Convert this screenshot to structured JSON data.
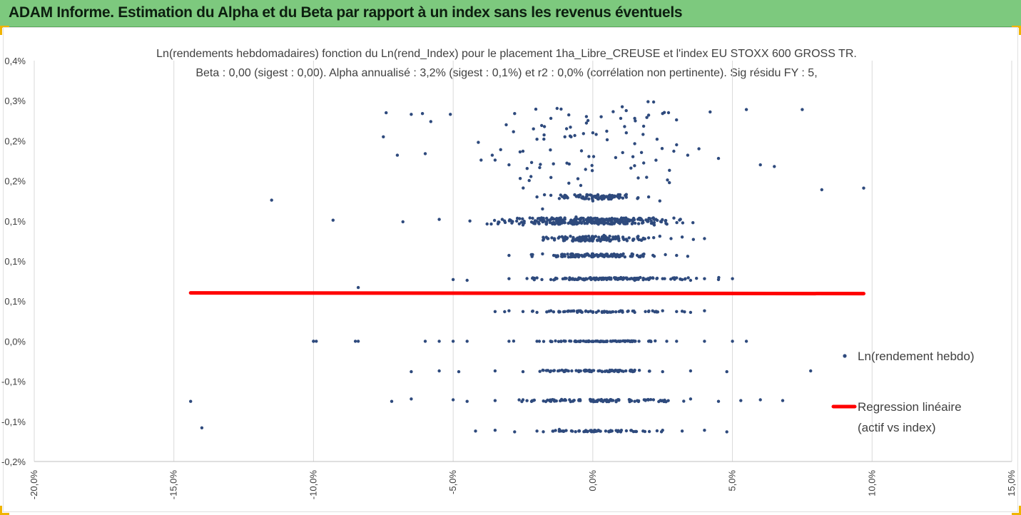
{
  "banner": {
    "title": "ADAM Informe. Estimation du Alpha et du Beta par rapport à un index sans les revenus éventuels"
  },
  "chart_data": {
    "type": "scatter",
    "title": "Ln(rendements hebdomadaires) fonction du Ln(rend_Index) pour le placement 1ha_Libre_CREUSE et l'index EU STOXX 600 GROSS TR.",
    "subtitle": "Beta : 0,00 (sigest : 0,00). Alpha annualisé : 3,2% (sigest : 0,1%) et r2 : 0,0% (corrélation non pertinente). Sig résidu FY : 5,",
    "xlabel": "",
    "ylabel": "",
    "xlim": [
      -0.2,
      0.15
    ],
    "ylim": [
      -0.0015,
      0.003
    ],
    "x_ticks": [
      -0.2,
      -0.15,
      -0.1,
      -0.05,
      0.0,
      0.05,
      0.1,
      0.15
    ],
    "x_tick_labels": [
      "-20,0%",
      "-15,0%",
      "-10,0%",
      "-5,0%",
      "0,0%",
      "5,0%",
      "10,0%",
      "15,0%"
    ],
    "y_ticks": [
      -0.0015,
      -0.001,
      -0.0005,
      0.0,
      0.0005,
      0.001,
      0.0015,
      0.002,
      0.0025,
      0.003
    ],
    "y_tick_labels": [
      "-0,2%",
      "-0,1%",
      "-0,1%",
      "0,0%",
      "0,1%",
      "0,1%",
      "0,1%",
      "0,2%",
      "0,2%",
      "0,3%"
    ],
    "y_tick_top_label": "0,4%",
    "grid": "vertical",
    "legend_position": "right",
    "series": [
      {
        "name": "Ln(rendement hebdo)",
        "kind": "points",
        "color": "#2e4a7d",
        "x": [
          -0.144,
          -0.14,
          -0.115,
          -0.1,
          -0.099,
          -0.093,
          -0.084,
          -0.084,
          -0.075,
          -0.074,
          -0.07,
          -0.068,
          -0.061,
          -0.055,
          -0.051,
          -0.044,
          -0.041,
          -0.035,
          -0.033,
          -0.031,
          -0.028,
          -0.015,
          -0.008,
          0.003,
          0.01,
          0.015,
          0.02,
          0.025,
          0.029,
          0.034,
          0.042,
          0.055,
          0.075,
          0.082,
          0.097,
          -0.058,
          -0.06,
          -0.065,
          -0.04,
          -0.036,
          -0.03,
          -0.025,
          -0.02,
          -0.01,
          0.0,
          0.005,
          0.012,
          0.018,
          0.023,
          0.03,
          0.038,
          0.045,
          0.06,
          0.065,
          -0.02,
          -0.018,
          -0.015,
          -0.012,
          -0.01,
          -0.005,
          0.0,
          0.004,
          0.008,
          0.012,
          0.016,
          0.02,
          0.024,
          -0.025,
          -0.018,
          -0.014,
          -0.01,
          -0.006,
          -0.002,
          0.002,
          0.006,
          0.01,
          0.014,
          0.018,
          0.022,
          0.026,
          -0.016,
          -0.012,
          -0.008,
          -0.004,
          0.0,
          0.004,
          0.008,
          0.012,
          0.016,
          0.02,
          0.024,
          0.028,
          0.032,
          0.036,
          0.04,
          -0.03,
          -0.022,
          -0.018,
          -0.014,
          -0.01,
          -0.006,
          -0.002,
          0.002,
          0.006,
          0.01,
          0.014,
          0.018,
          0.022,
          0.026,
          0.03,
          0.034,
          -0.05,
          -0.045,
          -0.03,
          -0.02,
          -0.015,
          -0.01,
          -0.005,
          0.0,
          0.005,
          0.01,
          0.015,
          0.02,
          0.025,
          0.03,
          0.035,
          0.04,
          0.045,
          0.05,
          -0.035,
          -0.03,
          -0.025,
          -0.02,
          -0.015,
          -0.01,
          -0.005,
          0.0,
          0.005,
          0.01,
          0.015,
          0.02,
          0.025,
          0.03,
          0.035,
          0.04,
          -0.1,
          -0.085,
          -0.06,
          -0.055,
          -0.05,
          -0.045,
          -0.03,
          -0.02,
          -0.01,
          0.0,
          0.01,
          0.02,
          0.03,
          0.04,
          0.05,
          0.055,
          -0.065,
          -0.055,
          -0.048,
          -0.035,
          -0.025,
          -0.015,
          -0.005,
          0.005,
          0.015,
          0.025,
          0.035,
          0.048,
          0.078,
          -0.072,
          -0.065,
          -0.05,
          -0.045,
          -0.035,
          -0.025,
          -0.015,
          -0.005,
          0.005,
          0.015,
          0.025,
          0.035,
          0.045,
          0.053,
          0.06,
          0.068,
          -0.042,
          -0.035,
          -0.028,
          -0.02,
          -0.012,
          -0.005,
          0.002,
          0.01,
          0.018,
          0.025,
          0.032,
          0.04,
          0.048
        ],
        "y": [
          -0.00075,
          -0.00108,
          0.00176,
          0.0,
          0.0,
          0.00151,
          0.00067,
          0.0,
          0.00255,
          0.00285,
          0.00232,
          0.00149,
          0.00284,
          0.00152,
          0.00283,
          0.0015,
          0.00248,
          0.00226,
          0.00239,
          0.0027,
          0.00284,
          0.00278,
          0.00267,
          0.0028,
          0.00278,
          0.00278,
          0.00282,
          0.00284,
          0.00237,
          0.00232,
          0.00286,
          0.00289,
          0.00289,
          0.00189,
          0.00191,
          0.00274,
          0.00234,
          0.00283,
          0.00226,
          0.00232,
          0.0022,
          0.00237,
          0.00252,
          0.00255,
          0.0026,
          0.00262,
          0.0026,
          0.00258,
          0.00252,
          0.00245,
          0.0024,
          0.00228,
          0.0022,
          0.00218,
          0.0018,
          0.00165,
          0.00182,
          0.00178,
          0.00182,
          0.0018,
          0.00175,
          0.00178,
          0.00181,
          0.00183,
          0.00178,
          0.0018,
          0.00175,
          0.00145,
          0.0015,
          0.00148,
          0.00152,
          0.00155,
          0.00147,
          0.00146,
          0.00152,
          0.00149,
          0.00151,
          0.00148,
          0.00145,
          0.0015,
          0.00128,
          0.0013,
          0.00131,
          0.00129,
          0.0013,
          0.00132,
          0.00128,
          0.00127,
          0.0013,
          0.00129,
          0.00131,
          0.00128,
          0.0013,
          0.00127,
          0.00128,
          0.00107,
          0.00108,
          0.00109,
          0.00107,
          0.00106,
          0.00108,
          0.00109,
          0.00107,
          0.00106,
          0.00108,
          0.00109,
          0.00107,
          0.00106,
          0.00108,
          0.00107,
          0.00106,
          0.00077,
          0.00076,
          0.00078,
          0.00079,
          0.00077,
          0.00078,
          0.00079,
          0.00078,
          0.00077,
          0.00078,
          0.00076,
          0.00077,
          0.00078,
          0.00079,
          0.00076,
          0.00078,
          0.00077,
          0.00078,
          0.00037,
          0.00038,
          0.00037,
          0.00036,
          0.00038,
          0.00037,
          0.00038,
          0.00036,
          0.00037,
          0.00038,
          0.00036,
          0.00037,
          0.00038,
          0.00037,
          0.00036,
          0.00038,
          0.0,
          0.0,
          0.0,
          0.0,
          0.0,
          0.0,
          0.0,
          0.0,
          0.0,
          0.0,
          0.0,
          0.0,
          0.0,
          0.0,
          0.0,
          0.0,
          -0.00038,
          -0.00037,
          -0.00038,
          -0.00037,
          -0.00038,
          -0.00037,
          -0.00038,
          -0.00037,
          -0.00036,
          -0.00038,
          -0.00037,
          -0.00038,
          -0.00037,
          -0.00075,
          -0.00072,
          -0.00073,
          -0.00075,
          -0.00074,
          -0.00073,
          -0.00075,
          -0.00074,
          -0.00073,
          -0.00075,
          -0.00074,
          -0.00072,
          -0.00075,
          -0.00074,
          -0.00073,
          -0.00074,
          -0.00112,
          -0.00111,
          -0.00113,
          -0.00112,
          -0.0011,
          -0.00112,
          -0.00111,
          -0.00113,
          -0.00112,
          -0.00111,
          -0.00112,
          -0.00111,
          -0.00113
        ]
      },
      {
        "name": "Regression linéaire (actif vs index)",
        "kind": "line",
        "color": "#ff0000",
        "x": [
          -0.144,
          0.097
        ],
        "y": [
          0.000603,
          0.000594
        ]
      }
    ],
    "legend": [
      {
        "label": "Ln(rendement hebdo)",
        "marker": "dot",
        "color": "#2e4a7d"
      },
      {
        "label_lines": [
          "Regression linéaire",
          "(actif vs index)"
        ],
        "marker": "line",
        "color": "#ff0000"
      }
    ]
  }
}
